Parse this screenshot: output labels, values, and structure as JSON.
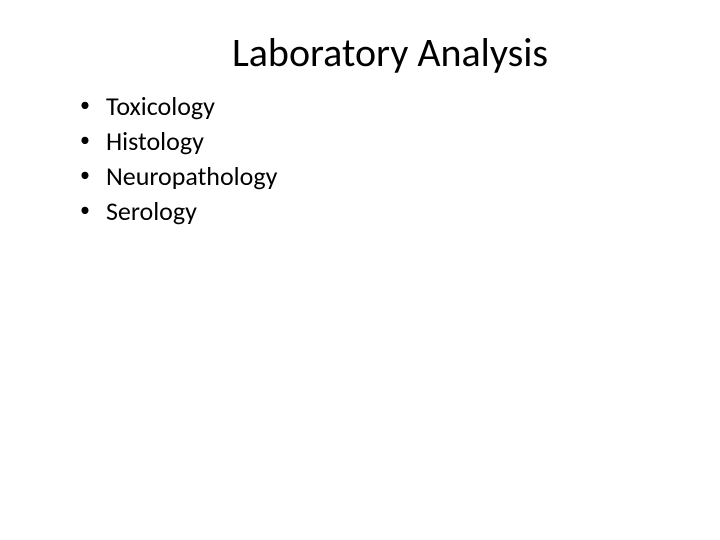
{
  "slide": {
    "title": "Laboratory Analysis",
    "bullets": [
      "Toxicology",
      "Histology",
      "Neuropathology",
      "Serology"
    ],
    "bullet_marker": "•"
  },
  "style": {
    "background_color": "#ffffff",
    "text_color": "#000000",
    "title_fontsize": 40,
    "body_fontsize": 26,
    "font_family": "Calibri"
  }
}
